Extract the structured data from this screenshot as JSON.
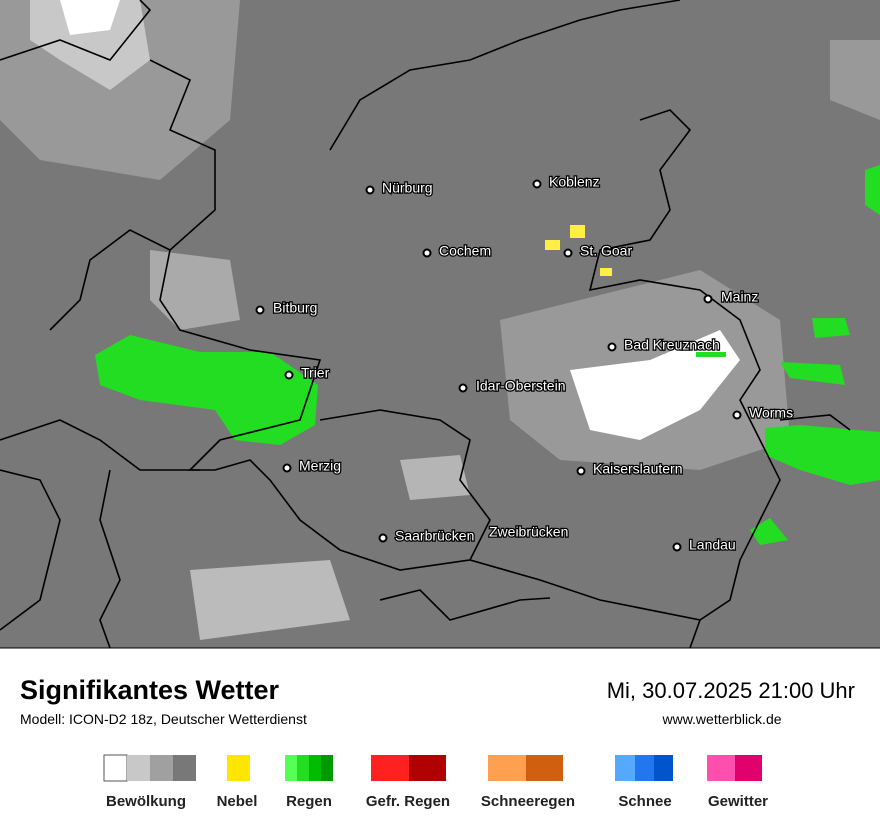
{
  "map": {
    "cities": [
      "Nürburg",
      "Koblenz",
      "Cochem",
      "St. Goar",
      "Bitburg",
      "Mainz",
      "Trier",
      "Bad Kreuznach",
      "Idar-Oberstein",
      "Worms",
      "Merzig",
      "Kaiserslautern",
      "Saarbrücken",
      "Zweibrücken",
      "Landau"
    ]
  },
  "footer": {
    "title": "Signifikantes Wetter",
    "model": "Modell: ICON-D2 18z, Deutscher Wetterdienst",
    "datetime": "Mi, 30.07.2025 21:00 Uhr",
    "website": "www.wetterblick.de"
  },
  "legend": {
    "items": [
      "Bewölkung",
      "Nebel",
      "Regen",
      "Gefr. Regen",
      "Schneeregen",
      "Schnee",
      "Gewitter"
    ]
  }
}
